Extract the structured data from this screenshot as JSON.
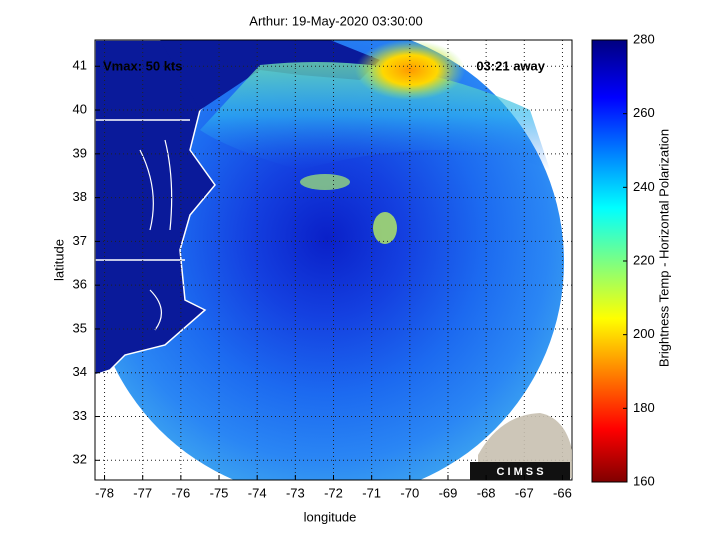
{
  "title": "Arthur: 19-May-2020 03:30:00",
  "xlabel": "longitude",
  "ylabel": "latitude",
  "xlim": [
    -78.25,
    -65.75
  ],
  "xticks": [
    -78,
    -77,
    -76,
    -75,
    -74,
    -73,
    -72,
    -71,
    -70,
    -69,
    -68,
    -67,
    -66
  ],
  "ylim": [
    31.55,
    41.6
  ],
  "yticks": [
    32,
    33,
    34,
    35,
    36,
    37,
    38,
    39,
    40,
    41
  ],
  "annotations": [
    "Vmax: 50 kts",
    "03:21 away"
  ],
  "colorbar": {
    "label": "Brightness Temp - Horizontal Polarization",
    "lim": [
      160,
      280
    ],
    "ticks": [
      160,
      180,
      200,
      220,
      240,
      260,
      280
    ]
  },
  "logo": "C I M S S"
}
